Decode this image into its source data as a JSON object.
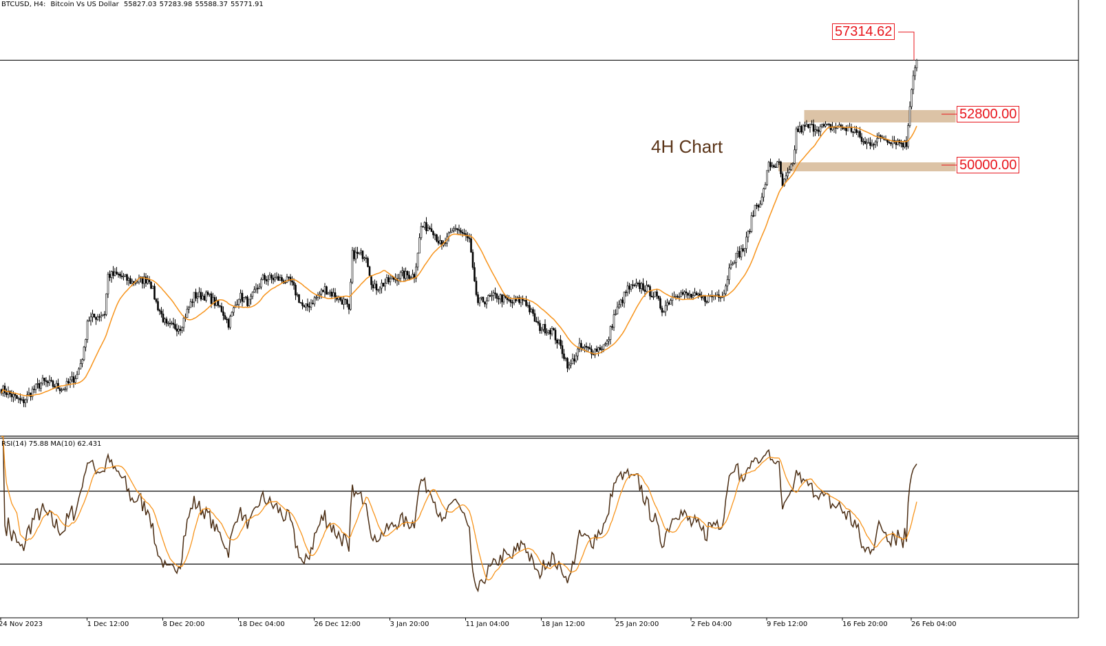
{
  "header": {
    "symbol": "BTCUSD, H4:",
    "description": "Bitcoin Vs US Dollar",
    "open": "55827.03",
    "high": "57283.98",
    "low": "55588.37",
    "close": "55771.91"
  },
  "annotation": "4H Chart",
  "price_labels": {
    "high": "57314.62",
    "resistance": "52800.00",
    "support": "50000.00"
  },
  "rsi_header": {
    "name": "RSI(14)",
    "value": "75.88",
    "ma_name": "MA(10)",
    "ma_value": "62.431"
  },
  "colors": {
    "candle": "#000000",
    "price_ma": "#f7931a",
    "rsi_line": "#4a2c12",
    "rsi_ma": "#f7931a",
    "zone": "#dcc3a6",
    "label": "#e8141b"
  },
  "chart_data": {
    "type": "candlestick",
    "title": "BTCUSD, H4: Bitcoin Vs US Dollar",
    "price_range": [
      36000,
      58300
    ],
    "current_price": 55771.91,
    "levels": [
      57314.62,
      52800.0,
      50000.0
    ],
    "zones": [
      {
        "price": 52800,
        "from_bar": 467,
        "to_bar": 555
      },
      {
        "price": 50000,
        "from_bar": 452,
        "to_bar": 555
      }
    ],
    "close_path_anchors": [
      [
        0,
        37704
      ],
      [
        8,
        37212
      ],
      [
        12,
        36947
      ],
      [
        18,
        37590
      ],
      [
        24,
        38082
      ],
      [
        36,
        37704
      ],
      [
        44,
        38460
      ],
      [
        48,
        39785
      ],
      [
        50,
        41487
      ],
      [
        60,
        41866
      ],
      [
        62,
        43947
      ],
      [
        68,
        43947
      ],
      [
        76,
        43568
      ],
      [
        86,
        43757
      ],
      [
        90,
        42433
      ],
      [
        96,
        41109
      ],
      [
        104,
        41109
      ],
      [
        112,
        42812
      ],
      [
        120,
        42812
      ],
      [
        128,
        42055
      ],
      [
        132,
        41298
      ],
      [
        138,
        42812
      ],
      [
        144,
        42433
      ],
      [
        152,
        43757
      ],
      [
        160,
        43757
      ],
      [
        168,
        43568
      ],
      [
        176,
        42055
      ],
      [
        188,
        43190
      ],
      [
        200,
        42433
      ],
      [
        202,
        41866
      ],
      [
        204,
        45082
      ],
      [
        212,
        45082
      ],
      [
        216,
        43190
      ],
      [
        224,
        43568
      ],
      [
        232,
        43947
      ],
      [
        240,
        43947
      ],
      [
        244,
        46595
      ],
      [
        250,
        46595
      ],
      [
        256,
        45460
      ],
      [
        264,
        46595
      ],
      [
        272,
        45838
      ],
      [
        275,
        43379
      ],
      [
        277,
        42433
      ],
      [
        288,
        42812
      ],
      [
        296,
        42433
      ],
      [
        304,
        42622
      ],
      [
        312,
        41109
      ],
      [
        320,
        40920
      ],
      [
        326,
        39785
      ],
      [
        330,
        38839
      ],
      [
        336,
        39974
      ],
      [
        344,
        39785
      ],
      [
        352,
        40163
      ],
      [
        356,
        41677
      ],
      [
        364,
        43190
      ],
      [
        372,
        43379
      ],
      [
        380,
        42812
      ],
      [
        384,
        42055
      ],
      [
        392,
        43001
      ],
      [
        400,
        42812
      ],
      [
        408,
        42622
      ],
      [
        420,
        43001
      ],
      [
        424,
        44703
      ],
      [
        432,
        45460
      ],
      [
        438,
        47730
      ],
      [
        442,
        48108
      ],
      [
        446,
        50000
      ],
      [
        452,
        50000
      ],
      [
        454,
        48865
      ],
      [
        460,
        50000
      ],
      [
        462,
        51892
      ],
      [
        468,
        52081
      ],
      [
        476,
        52081
      ],
      [
        488,
        52081
      ],
      [
        496,
        51892
      ],
      [
        502,
        51135
      ],
      [
        512,
        51514
      ],
      [
        520,
        51324
      ],
      [
        526,
        51135
      ],
      [
        528,
        53405
      ],
      [
        530,
        54919
      ],
      [
        532,
        55771
      ]
    ],
    "price_ma_period": 20,
    "rsi": {
      "period": 14,
      "ma_period": 10,
      "levels": [
        70,
        30
      ],
      "range": [
        0,
        100
      ],
      "last": 75.88,
      "ma_last": 62.431
    },
    "x_tick_labels": [
      {
        "bar": 0,
        "label": "24 Nov 2023"
      },
      {
        "bar": 45,
        "label": "1 Dec 12:00"
      },
      {
        "bar": 89,
        "label": "8 Dec 20:00"
      },
      {
        "bar": 133,
        "label": "18 Dec 04:00"
      },
      {
        "bar": 177,
        "label": "26 Dec 12:00"
      },
      {
        "bar": 221,
        "label": "3 Jan 20:00"
      },
      {
        "bar": 265,
        "label": "11 Jan 04:00"
      },
      {
        "bar": 309,
        "label": "18 Jan 12:00"
      },
      {
        "bar": 352,
        "label": "25 Jan 20:00"
      },
      {
        "bar": 396,
        "label": "2 Feb 04:00"
      },
      {
        "bar": 440,
        "label": "9 Feb 12:00"
      },
      {
        "bar": 484,
        "label": "16 Feb 20:00"
      },
      {
        "bar": 524,
        "label": "26 Feb 04:00"
      }
    ]
  }
}
